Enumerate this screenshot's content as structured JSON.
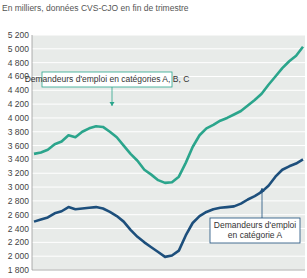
{
  "chart_data": {
    "type": "line",
    "subtitle": "En milliers, données CVS-CJO en fin de trimestre",
    "categories": [
      null,
      null,
      null,
      null,
      null,
      null,
      null,
      null,
      null,
      null,
      null,
      null,
      null,
      null,
      null,
      null,
      null,
      null,
      null,
      null,
      null,
      null,
      null,
      null,
      null,
      null,
      null,
      null,
      null,
      null,
      null,
      null,
      null,
      null,
      null,
      null,
      null,
      null,
      null,
      null
    ],
    "series": [
      {
        "name": "Demandeurs d'emploi en catégories A, B, C",
        "color": "#2ba58c",
        "values": [
          3480,
          3500,
          3540,
          3620,
          3660,
          3750,
          3720,
          3800,
          3850,
          3880,
          3870,
          3800,
          3720,
          3600,
          3480,
          3380,
          3250,
          3180,
          3100,
          3060,
          3070,
          3150,
          3350,
          3580,
          3750,
          3850,
          3900,
          3960,
          4000,
          4050,
          4100,
          4180,
          4260,
          4350,
          4480,
          4600,
          4720,
          4820,
          4900,
          5030
        ]
      },
      {
        "name": "Demandeurs d'emploi en catégorie A",
        "color": "#1d4f7c",
        "values": [
          2500,
          2530,
          2560,
          2620,
          2650,
          2710,
          2680,
          2690,
          2700,
          2710,
          2690,
          2640,
          2580,
          2500,
          2380,
          2280,
          2200,
          2130,
          2060,
          1990,
          2010,
          2080,
          2300,
          2480,
          2580,
          2640,
          2680,
          2700,
          2710,
          2720,
          2760,
          2820,
          2870,
          2930,
          3020,
          3150,
          3250,
          3300,
          3340,
          3400
        ]
      }
    ],
    "ylim": [
      1800,
      5200
    ],
    "yticks": [
      {
        "value": 1800,
        "label": "1 800"
      },
      {
        "value": 2000,
        "label": "2 000"
      },
      {
        "value": 2200,
        "label": "2 200"
      },
      {
        "value": 2400,
        "label": "2 400"
      },
      {
        "value": 2600,
        "label": "2 600"
      },
      {
        "value": 2800,
        "label": "2 800"
      },
      {
        "value": 3000,
        "label": "3 000"
      },
      {
        "value": 3200,
        "label": "3 200"
      },
      {
        "value": 3400,
        "label": "3 400"
      },
      {
        "value": 3600,
        "label": "3 600"
      },
      {
        "value": 3800,
        "label": "3 800"
      },
      {
        "value": 4000,
        "label": "4 000"
      },
      {
        "value": 4200,
        "label": "4 200"
      },
      {
        "value": 4400,
        "label": "4 400"
      },
      {
        "value": 4600,
        "label": "4 600"
      },
      {
        "value": 4800,
        "label": "4 800"
      },
      {
        "value": 5000,
        "label": "5 000"
      },
      {
        "value": 5200,
        "label": "5 200"
      }
    ],
    "grid": true,
    "tick_labels": "y"
  }
}
